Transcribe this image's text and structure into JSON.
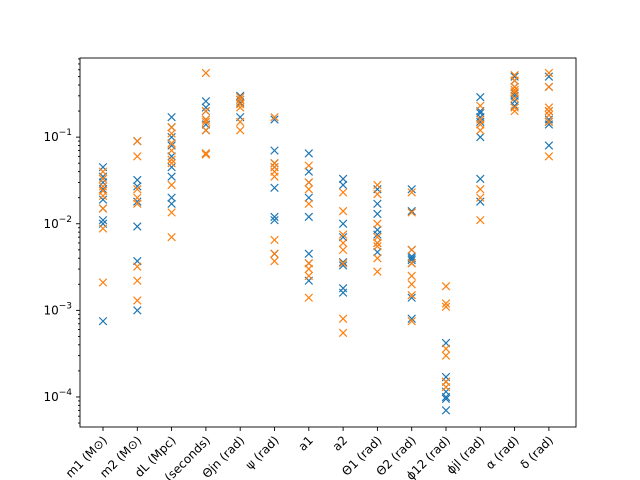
{
  "chart_data": {
    "type": "scatter",
    "title": "",
    "xlabel": "",
    "ylabel": "",
    "yscale": "log",
    "ylim": [
      4.5e-05,
      0.82
    ],
    "y_ticks": [
      0.0001,
      0.001,
      0.01,
      0.1
    ],
    "y_tick_labels": [
      "10^-4",
      "10^-3",
      "10^-2",
      "10^-1"
    ],
    "grid": false,
    "legend": "none",
    "categories": [
      "m1 (M⊙)",
      "m2 (M⊙)",
      "dL (Mpc)",
      "tc (seconds)",
      "Θjn (rad)",
      "ψ (rad)",
      "a1",
      "a2",
      "Θ1 (rad)",
      "Θ2 (rad)",
      "ϕ12 (rad)",
      "ϕjl (rad)",
      "α (rad)",
      "δ (rad)"
    ],
    "series": [
      {
        "color": "#1f77b4",
        "values": [
          [
            0.045,
            0.035,
            0.03,
            0.025,
            0.019,
            0.015,
            0.011,
            0.01,
            0.00075
          ],
          [
            0.09,
            0.032,
            0.027,
            0.018,
            0.0093,
            0.0037,
            0.001
          ],
          [
            0.17,
            0.13,
            0.1,
            0.08,
            0.06,
            0.045,
            0.035,
            0.02,
            0.017
          ],
          [
            0.26,
            0.22,
            0.2,
            0.16,
            0.14,
            0.12,
            0.065
          ],
          [
            0.3,
            0.29,
            0.27,
            0.25,
            0.17
          ],
          [
            0.16,
            0.07,
            0.05,
            0.045,
            0.026,
            0.012,
            0.011,
            0.0045
          ],
          [
            0.065,
            0.04,
            0.03,
            0.02,
            0.012,
            0.0045,
            0.0035,
            0.0022
          ],
          [
            0.033,
            0.028,
            0.01,
            0.007,
            0.0036,
            0.0033,
            0.0018,
            0.0016
          ],
          [
            0.025,
            0.017,
            0.013,
            0.0085,
            0.0075,
            0.006,
            0.0047
          ],
          [
            0.025,
            0.014,
            0.005,
            0.0042,
            0.004,
            0.0038,
            0.0035,
            0.0014,
            0.0008
          ],
          [
            0.00042,
            0.00017,
            0.00015,
            0.000115,
            0.0001,
            9.5e-05,
            7e-05
          ],
          [
            0.29,
            0.2,
            0.19,
            0.17,
            0.15,
            0.1,
            0.033,
            0.018
          ],
          [
            0.5,
            0.45,
            0.38,
            0.32,
            0.3,
            0.26,
            0.23
          ],
          [
            0.5,
            0.38,
            0.2,
            0.16,
            0.15,
            0.14,
            0.08
          ]
        ]
      },
      {
        "color": "#ff7f0e",
        "values": [
          [
            0.04,
            0.033,
            0.027,
            0.024,
            0.021,
            0.015,
            0.0088,
            0.0021
          ],
          [
            0.09,
            0.06,
            0.025,
            0.02,
            0.017,
            0.0032,
            0.0022,
            0.0013
          ],
          [
            0.13,
            0.11,
            0.085,
            0.07,
            0.055,
            0.05,
            0.028,
            0.0135,
            0.007
          ],
          [
            0.55,
            0.2,
            0.16,
            0.15,
            0.12,
            0.065,
            0.063
          ],
          [
            0.29,
            0.27,
            0.24,
            0.22,
            0.15,
            0.12
          ],
          [
            0.17,
            0.05,
            0.045,
            0.04,
            0.035,
            0.0065,
            0.0045,
            0.0037
          ],
          [
            0.047,
            0.03,
            0.025,
            0.017,
            0.0035,
            0.003,
            0.0025,
            0.0014
          ],
          [
            0.023,
            0.014,
            0.0075,
            0.006,
            0.005,
            0.0035,
            0.0008,
            0.00055
          ],
          [
            0.028,
            0.022,
            0.01,
            0.007,
            0.006,
            0.0055,
            0.004,
            0.0028
          ],
          [
            0.023,
            0.0135,
            0.005,
            0.0035,
            0.0025,
            0.002,
            0.0015,
            0.00075
          ],
          [
            0.0019,
            0.0012,
            0.0011,
            0.00036,
            0.0003,
            0.00015,
            0.00013
          ],
          [
            0.23,
            0.16,
            0.14,
            0.12,
            0.025,
            0.02,
            0.011
          ],
          [
            0.52,
            0.45,
            0.38,
            0.35,
            0.33,
            0.28,
            0.22,
            0.2
          ],
          [
            0.55,
            0.38,
            0.22,
            0.2,
            0.18,
            0.15,
            0.06
          ]
        ]
      }
    ]
  }
}
